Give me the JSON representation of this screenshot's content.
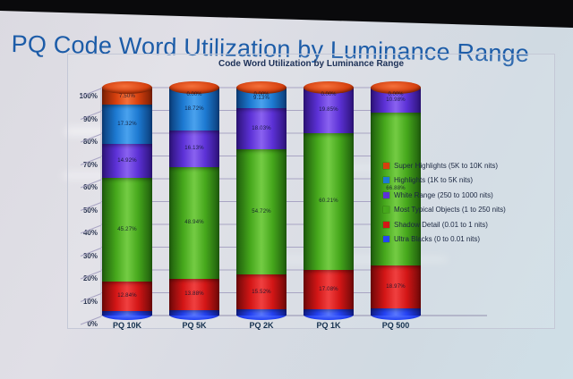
{
  "slide_title": "PQ Code Word Utilization by Luminance Range",
  "colors": {
    "slide_title_text": "#1c5ca8",
    "chart_text": "#1c3057",
    "gridline": "#a8a4c3",
    "axis_line": "#938fae"
  },
  "y_axis": {
    "ticks": [
      "0%",
      "10%",
      "20%",
      "30%",
      "40%",
      "50%",
      "60%",
      "70%",
      "80%",
      "90%",
      "100%"
    ]
  },
  "chart_data": {
    "type": "bar",
    "subtype": "3d-100pct-stacked-cylinder",
    "title": "Code Word Utilization by Luminance Range",
    "categories": [
      "PQ 10K",
      "PQ 5K",
      "PQ 2K",
      "PQ 1K",
      "PQ 500"
    ],
    "unit": "%",
    "ylim": [
      0,
      100
    ],
    "grid": true,
    "legend_position": "right",
    "zero_label": "0.00%",
    "series_bottom_to_top": [
      {
        "name": "Ultra Blacks (0 to 0.01 nits)",
        "color": "#2543f5",
        "light": "#5a78ff",
        "dark": "#101d88",
        "values": [
          2.15,
          2.32,
          2.6,
          2.86,
          3.17
        ]
      },
      {
        "name": "Shadow Detail (0.01 to 1 nits)",
        "color": "#d31616",
        "light": "#f04040",
        "dark": "#6e0808",
        "values": [
          12.84,
          13.88,
          15.52,
          17.08,
          18.97
        ]
      },
      {
        "name": "Most Typical Objects (1 to 250 nits)",
        "color": "#46a81c",
        "light": "#74cc44",
        "dark": "#1e5c0c",
        "values": [
          45.27,
          48.94,
          54.72,
          60.21,
          66.88
        ]
      },
      {
        "name": "White Range (250 to 1000 nits)",
        "color": "#5c31d6",
        "light": "#8a62f0",
        "dark": "#2c1278",
        "values": [
          14.92,
          16.13,
          18.03,
          19.85,
          10.98
        ]
      },
      {
        "name": "Highlights (1K to 5K nits)",
        "color": "#1d7ad2",
        "light": "#4aa2ee",
        "dark": "#0a3c78",
        "values": [
          17.32,
          18.72,
          9.13,
          0.0,
          0.0
        ]
      },
      {
        "name": "Super Highlights (5K to 10K nits)",
        "color": "#d6400e",
        "light": "#f4703a",
        "dark": "#7a1e04",
        "values": [
          7.5,
          0.0,
          0.0,
          0.0,
          0.0
        ]
      }
    ],
    "legend_order_top_to_bottom": [
      "Super Highlights (5K to 10K nits)",
      "Highlights (1K to 5K nits)",
      "White Range (250 to 1000 nits)",
      "Most Typical Objects (1 to 250 nits)",
      "Shadow Detail (0.01 to 1 nits)",
      "Ultra Blacks (0 to 0.01 nits)"
    ]
  }
}
